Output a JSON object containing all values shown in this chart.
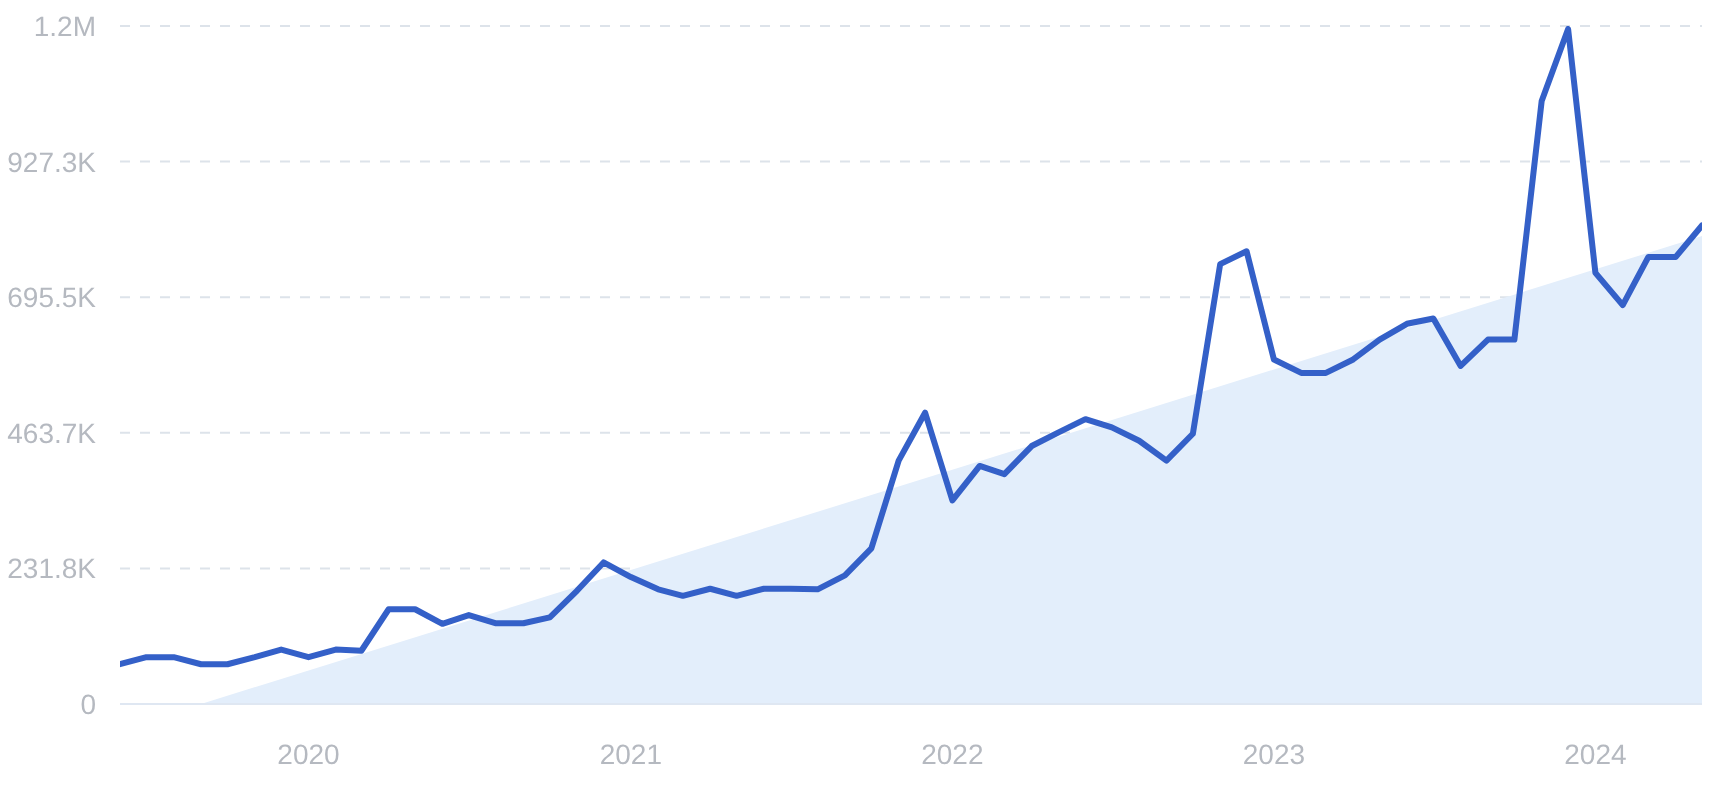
{
  "chart_data": {
    "type": "line",
    "x": [
      "2019-06",
      "2019-07",
      "2019-08",
      "2019-09",
      "2019-10",
      "2019-11",
      "2019-12",
      "2020-01",
      "2020-02",
      "2020-03",
      "2020-04",
      "2020-05",
      "2020-06",
      "2020-07",
      "2020-08",
      "2020-09",
      "2020-10",
      "2020-11",
      "2020-12",
      "2021-01",
      "2021-02",
      "2021-03",
      "2021-04",
      "2021-05",
      "2021-06",
      "2021-07",
      "2021-08",
      "2021-09",
      "2021-10",
      "2021-11",
      "2021-12",
      "2022-01",
      "2022-02",
      "2022-03",
      "2022-04",
      "2022-05",
      "2022-06",
      "2022-07",
      "2022-08",
      "2022-09",
      "2022-10",
      "2022-11",
      "2022-12",
      "2023-01",
      "2023-02",
      "2023-03",
      "2023-04",
      "2023-05",
      "2023-06",
      "2023-07",
      "2023-08",
      "2023-09",
      "2023-10",
      "2023-11",
      "2023-12",
      "2024-01",
      "2024-02",
      "2024-03",
      "2024-04",
      "2024-05"
    ],
    "series": [
      {
        "type": "area",
        "color": "#e3eefb",
        "x": [
          "2019-09",
          "2024-05"
        ],
        "values": [
          0,
          800000
        ]
      },
      {
        "color": "#3460c8",
        "values": [
          68000,
          80000,
          80000,
          68000,
          68000,
          80000,
          93000,
          80000,
          93000,
          91000,
          162000,
          162000,
          137000,
          152000,
          138000,
          138000,
          148000,
          194000,
          242000,
          217000,
          196000,
          185000,
          197000,
          185000,
          197000,
          197000,
          196000,
          220000,
          266000,
          416000,
          498000,
          348000,
          407000,
          393000,
          441000,
          464000,
          487000,
          473000,
          450000,
          416000,
          462000,
          752000,
          774000,
          589000,
          566000,
          566000,
          589000,
          623000,
          650000,
          659000,
          578000,
          623000,
          623000,
          1031000,
          1154000,
          737000,
          682000,
          764000,
          764000,
          818000
        ]
      }
    ],
    "xlim": [
      "2019-06",
      "2024-05"
    ],
    "xticks": [
      {
        "value": "2020-01",
        "label": "2020"
      },
      {
        "value": "2021-01",
        "label": "2021"
      },
      {
        "value": "2022-01",
        "label": "2022"
      },
      {
        "value": "2023-01",
        "label": "2023"
      },
      {
        "value": "2024-01",
        "label": "2024"
      }
    ],
    "ylim": [
      0,
      1159100
    ],
    "yticks": [
      0,
      {
        "value": 231800,
        "label": "231.8K"
      },
      {
        "value": 463700,
        "label": "463.7K"
      },
      {
        "value": 695500,
        "label": "695.5K"
      },
      {
        "value": 927300,
        "label": "927.3K"
      },
      {
        "value": 1159100,
        "label": "1.2M"
      }
    ],
    "grid": "y",
    "legend": false,
    "marker": "none",
    "line_style": "solid"
  }
}
